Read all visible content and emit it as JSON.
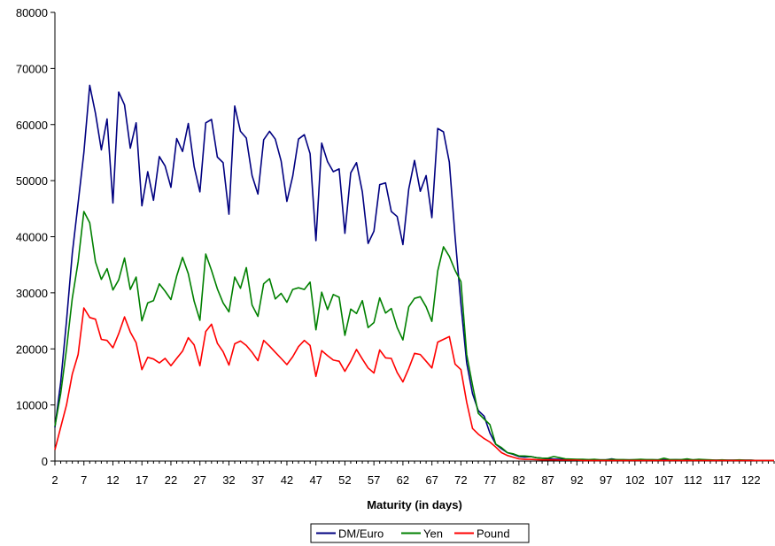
{
  "chart_data": {
    "type": "line",
    "title": "",
    "xlabel": "Maturity (in days)",
    "ylabel": "",
    "ylim": [
      0,
      80000
    ],
    "yticks": [
      0,
      10000,
      20000,
      30000,
      40000,
      50000,
      60000,
      70000,
      80000
    ],
    "xlim": [
      2,
      126
    ],
    "xticks": [
      2,
      7,
      12,
      17,
      22,
      27,
      32,
      37,
      42,
      47,
      52,
      57,
      62,
      67,
      72,
      77,
      82,
      87,
      92,
      97,
      102,
      107,
      112,
      117,
      122
    ],
    "grid": false,
    "legend_position": "bottom",
    "series": [
      {
        "name": "DM/Euro",
        "color": "#000080",
        "x": [
          2,
          3,
          4,
          5,
          6,
          7,
          8,
          9,
          10,
          11,
          12,
          13,
          14,
          15,
          16,
          17,
          18,
          19,
          20,
          21,
          22,
          23,
          24,
          25,
          26,
          27,
          28,
          29,
          30,
          31,
          32,
          33,
          34,
          35,
          36,
          37,
          38,
          39,
          40,
          41,
          42,
          43,
          44,
          45,
          46,
          47,
          48,
          49,
          50,
          51,
          52,
          53,
          54,
          55,
          56,
          57,
          58,
          59,
          60,
          61,
          62,
          63,
          64,
          65,
          66,
          67,
          68,
          69,
          70,
          71,
          72,
          73,
          74,
          75,
          76,
          77,
          78,
          79,
          80,
          81,
          82,
          83,
          84,
          85,
          86,
          87,
          88,
          89,
          90,
          91,
          92,
          93,
          94,
          95,
          96,
          97,
          98,
          99,
          100,
          101,
          102,
          103,
          104,
          105,
          106,
          107,
          108,
          109,
          110,
          111,
          112,
          113,
          114,
          115,
          116,
          117,
          118,
          119,
          120,
          121,
          122,
          123,
          124,
          125,
          126
        ],
        "values": [
          6000,
          14000,
          25000,
          37000,
          46000,
          55000,
          67000,
          62000,
          55500,
          61000,
          46000,
          65800,
          63500,
          55800,
          60300,
          45500,
          51600,
          46500,
          54300,
          52600,
          48800,
          57500,
          55200,
          60200,
          52500,
          48000,
          60300,
          60900,
          54200,
          53200,
          44000,
          63300,
          58800,
          57600,
          50900,
          47600,
          57300,
          58800,
          57400,
          53500,
          46300,
          50800,
          57400,
          58200,
          54800,
          39300,
          56700,
          53400,
          51600,
          52100,
          40600,
          51400,
          53200,
          48000,
          38800,
          41000,
          49300,
          49600,
          44500,
          43600,
          38600,
          48500,
          53600,
          48100,
          50900,
          43400,
          59300,
          58700,
          53300,
          40000,
          28000,
          17500,
          12000,
          9000,
          8000,
          5000,
          3000,
          2200,
          1500,
          1200,
          800,
          700,
          800,
          600,
          500,
          400,
          350,
          300,
          300,
          250,
          250,
          250,
          200,
          200,
          200,
          200,
          400,
          200,
          200,
          200,
          200,
          250,
          200,
          200,
          200,
          200,
          200,
          250,
          200,
          200,
          200,
          200,
          200,
          150,
          150,
          150,
          150,
          150,
          150,
          150,
          150,
          100,
          100,
          100,
          100
        ]
      },
      {
        "name": "Yen",
        "color": "#008000",
        "x": [
          2,
          3,
          4,
          5,
          6,
          7,
          8,
          9,
          10,
          11,
          12,
          13,
          14,
          15,
          16,
          17,
          18,
          19,
          20,
          21,
          22,
          23,
          24,
          25,
          26,
          27,
          28,
          29,
          30,
          31,
          32,
          33,
          34,
          35,
          36,
          37,
          38,
          39,
          40,
          41,
          42,
          43,
          44,
          45,
          46,
          47,
          48,
          49,
          50,
          51,
          52,
          53,
          54,
          55,
          56,
          57,
          58,
          59,
          60,
          61,
          62,
          63,
          64,
          65,
          66,
          67,
          68,
          69,
          70,
          71,
          72,
          73,
          74,
          75,
          76,
          77,
          78,
          79,
          80,
          81,
          82,
          83,
          84,
          85,
          86,
          87,
          88,
          89,
          90,
          91,
          92,
          93,
          94,
          95,
          96,
          97,
          98,
          99,
          100,
          101,
          102,
          103,
          104,
          105,
          106,
          107,
          108,
          109,
          110,
          111,
          112,
          113,
          114,
          115,
          116,
          117,
          118,
          119,
          120,
          121,
          122,
          123,
          124,
          125,
          126
        ],
        "values": [
          6200,
          12000,
          20000,
          29000,
          35500,
          44500,
          42500,
          35500,
          32400,
          34300,
          30500,
          32300,
          36200,
          30600,
          32800,
          25000,
          28200,
          28600,
          31600,
          30300,
          28800,
          33000,
          36300,
          33400,
          28500,
          25100,
          36900,
          34000,
          30700,
          28200,
          26600,
          32800,
          30800,
          34500,
          27800,
          25800,
          31600,
          32500,
          28900,
          29900,
          28300,
          30600,
          30900,
          30600,
          31900,
          23400,
          30100,
          27000,
          29700,
          29200,
          22400,
          27100,
          26300,
          28600,
          23800,
          24700,
          29100,
          26400,
          27200,
          23800,
          21600,
          27500,
          29000,
          29300,
          27500,
          24900,
          33900,
          38200,
          36500,
          34000,
          32000,
          19000,
          13500,
          8500,
          7500,
          6500,
          3000,
          2400,
          1500,
          1300,
          900,
          900,
          800,
          600,
          500,
          500,
          800,
          600,
          400,
          350,
          300,
          300,
          250,
          300,
          200,
          200,
          300,
          250,
          250,
          200,
          250,
          300,
          250,
          250,
          200,
          500,
          250,
          250,
          250,
          400,
          200,
          300,
          250,
          200,
          150,
          200,
          150,
          150,
          200,
          150,
          150,
          100,
          100,
          100,
          100
        ]
      },
      {
        "name": "Pound",
        "color": "#ff0000",
        "x": [
          2,
          3,
          4,
          5,
          6,
          7,
          8,
          9,
          10,
          11,
          12,
          13,
          14,
          15,
          16,
          17,
          18,
          19,
          20,
          21,
          22,
          23,
          24,
          25,
          26,
          27,
          28,
          29,
          30,
          31,
          32,
          33,
          34,
          35,
          36,
          37,
          38,
          39,
          40,
          41,
          42,
          43,
          44,
          45,
          46,
          47,
          48,
          49,
          50,
          51,
          52,
          53,
          54,
          55,
          56,
          57,
          58,
          59,
          60,
          61,
          62,
          63,
          64,
          65,
          66,
          67,
          68,
          69,
          70,
          71,
          72,
          73,
          74,
          75,
          76,
          77,
          78,
          79,
          80,
          81,
          82,
          83,
          84,
          85,
          86,
          87,
          88,
          89,
          90,
          91,
          92,
          93,
          94,
          95,
          96,
          97,
          98,
          99,
          100,
          101,
          102,
          103,
          104,
          105,
          106,
          107,
          108,
          109,
          110,
          111,
          112,
          113,
          114,
          115,
          116,
          117,
          118,
          119,
          120,
          121,
          122,
          123,
          124,
          125,
          126
        ],
        "values": [
          2000,
          6000,
          10000,
          15500,
          19000,
          27300,
          25600,
          25300,
          21700,
          21500,
          20200,
          22700,
          25700,
          23000,
          21100,
          16300,
          18500,
          18200,
          17500,
          18300,
          17000,
          18300,
          19600,
          22000,
          20700,
          17000,
          23100,
          24400,
          21000,
          19500,
          17100,
          20900,
          21400,
          20600,
          19400,
          17900,
          21500,
          20500,
          19400,
          18300,
          17200,
          18600,
          20400,
          21500,
          20600,
          15100,
          19700,
          18800,
          18000,
          17800,
          16000,
          17800,
          19900,
          18200,
          16600,
          15700,
          19800,
          18400,
          18300,
          15800,
          14100,
          16500,
          19200,
          19000,
          17800,
          16600,
          21200,
          21700,
          22200,
          17300,
          16300,
          10500,
          5800,
          4800,
          4000,
          3400,
          2500,
          1500,
          1000,
          700,
          400,
          300,
          300,
          250,
          200,
          200,
          200,
          150,
          150,
          150,
          150,
          100,
          100,
          100,
          100,
          100,
          100,
          100,
          100,
          100,
          100,
          100,
          100,
          100,
          100,
          100,
          100,
          100,
          100,
          100,
          100,
          100,
          100,
          100,
          100,
          100,
          100,
          100,
          100,
          100,
          100,
          100,
          100,
          100,
          100
        ]
      }
    ]
  }
}
